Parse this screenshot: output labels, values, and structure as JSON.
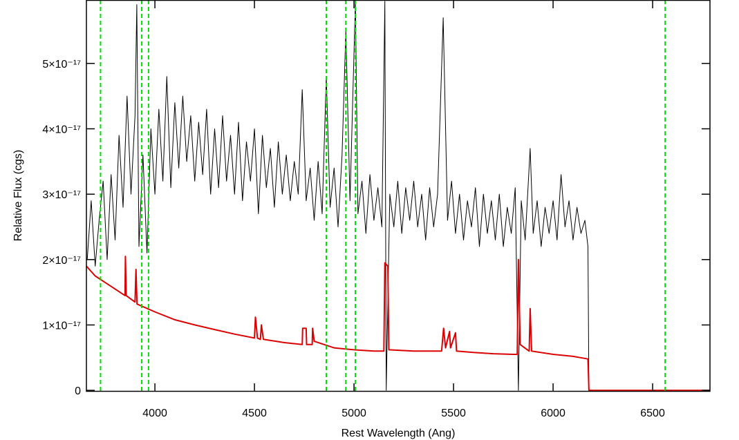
{
  "chart_data": {
    "type": "line",
    "xlabel": "Rest Wavelength (Ang)",
    "ylabel": "Relative Flux (cgs)",
    "xlim": [
      3656,
      6788
    ],
    "ylim": [
      -2e-19,
      5.97e-17
    ],
    "xticks": [
      4000,
      4500,
      5000,
      5500,
      6000,
      6500
    ],
    "yticks": [
      0,
      {
        "value": 1e-17,
        "label": "1×10⁻¹⁷"
      },
      {
        "value": 2e-17,
        "label": "2×10⁻¹⁷"
      },
      {
        "value": 3e-17,
        "label": "3×10⁻¹⁷"
      },
      {
        "value": 4e-17,
        "label": "4×10⁻¹⁷"
      },
      {
        "value": 5e-17,
        "label": "5×10⁻¹⁷"
      }
    ],
    "vlines": {
      "color": "#00dd00",
      "x": [
        3727,
        3934,
        3968,
        4861,
        4959,
        5007,
        6563
      ]
    },
    "series": [
      {
        "color": "#000000",
        "x": [
          3660,
          3680,
          3700,
          3720,
          3740,
          3760,
          3780,
          3800,
          3820,
          3840,
          3860,
          3880,
          3900,
          3909,
          3920,
          3940,
          3960,
          3980,
          4000,
          4020,
          4040,
          4060,
          4080,
          4100,
          4120,
          4140,
          4160,
          4180,
          4200,
          4220,
          4240,
          4260,
          4280,
          4300,
          4320,
          4340,
          4360,
          4380,
          4400,
          4420,
          4440,
          4460,
          4480,
          4500,
          4520,
          4540,
          4560,
          4580,
          4600,
          4620,
          4640,
          4660,
          4680,
          4700,
          4720,
          4740,
          4760,
          4780,
          4800,
          4820,
          4840,
          4861,
          4880,
          4900,
          4920,
          4940,
          4959,
          4980,
          5007,
          5020,
          5040,
          5060,
          5080,
          5100,
          5120,
          5140,
          5155,
          5162,
          5180,
          5200,
          5220,
          5240,
          5260,
          5280,
          5300,
          5320,
          5340,
          5360,
          5380,
          5400,
          5420,
          5448,
          5470,
          5490,
          5510,
          5530,
          5550,
          5570,
          5590,
          5610,
          5630,
          5650,
          5670,
          5690,
          5710,
          5730,
          5750,
          5770,
          5790,
          5810,
          5826,
          5840,
          5860,
          5885,
          5900,
          5920,
          5940,
          5960,
          5980,
          6000,
          6020,
          6040,
          6060,
          6080,
          6100,
          6120,
          6140,
          6160,
          6175,
          6180,
          6788
        ],
        "values": [
          2e-17,
          2.9e-17,
          1.9e-17,
          2.6e-17,
          3.2e-17,
          2e-17,
          3.3e-17,
          2.3e-17,
          3.9e-17,
          2.8e-17,
          4.5e-17,
          3e-17,
          4.2e-17,
          5.9e-17,
          2.2e-17,
          3.6e-17,
          2.1e-17,
          4e-17,
          3e-17,
          4.3e-17,
          3.2e-17,
          4.8e-17,
          3.1e-17,
          4.4e-17,
          3.4e-17,
          4.5e-17,
          3.5e-17,
          4.2e-17,
          3.2e-17,
          4.1e-17,
          3.3e-17,
          4.3e-17,
          3e-17,
          4e-17,
          3.1e-17,
          4.2e-17,
          3.2e-17,
          3.9e-17,
          3e-17,
          4.1e-17,
          2.9e-17,
          3.8e-17,
          3.2e-17,
          4e-17,
          2.7e-17,
          3.9e-17,
          3.1e-17,
          3.7e-17,
          2.8e-17,
          3.8e-17,
          3e-17,
          3.6e-17,
          2.9e-17,
          3.5e-17,
          3e-17,
          4.6e-17,
          2.9e-17,
          3.4e-17,
          2.6e-17,
          3.5e-17,
          2.7e-17,
          4.8e-17,
          2.8e-17,
          3.4e-17,
          2.5e-17,
          3.6e-17,
          5.5e-17,
          2.9e-17,
          5.95e-17,
          2.7e-17,
          3.2e-17,
          2.4e-17,
          3.3e-17,
          2.6e-17,
          3.1e-17,
          2.5e-17,
          5.95e-17,
          0,
          3e-17,
          2.5e-17,
          3.2e-17,
          2.4e-17,
          3.1e-17,
          2.6e-17,
          3.2e-17,
          2.5e-17,
          3e-17,
          2.3e-17,
          3.1e-17,
          2.5e-17,
          3e-17,
          5.7e-17,
          2.6e-17,
          3.2e-17,
          2.4e-17,
          3e-17,
          2.3e-17,
          2.9e-17,
          2.5e-17,
          3.1e-17,
          2.2e-17,
          3e-17,
          2.4e-17,
          2.9e-17,
          2.3e-17,
          3e-17,
          2.2e-17,
          2.8e-17,
          2.4e-17,
          3.1e-17,
          0,
          2.9e-17,
          2.3e-17,
          3.7e-17,
          2.4e-17,
          2.9e-17,
          2.2e-17,
          2.8e-17,
          2.4e-17,
          2.9e-17,
          2.3e-17,
          3.3e-17,
          2.5e-17,
          2.9e-17,
          2.3e-17,
          2.8e-17,
          2.4e-17,
          2.6e-17,
          2.2e-17,
          0,
          0
        ]
      },
      {
        "color": "#dd0000",
        "x": [
          3656,
          3700,
          3750,
          3800,
          3850,
          3852,
          3856,
          3900,
          3905,
          3910,
          4000,
          4100,
          4200,
          4300,
          4400,
          4500,
          4505,
          4515,
          4530,
          4535,
          4545,
          4650,
          4740,
          4742,
          4760,
          4762,
          4790,
          4792,
          4800,
          4900,
          5000,
          5100,
          5150,
          5155,
          5170,
          5175,
          5300,
          5440,
          5450,
          5460,
          5480,
          5485,
          5510,
          5515,
          5600,
          5700,
          5800,
          5820,
          5826,
          5835,
          5880,
          5885,
          5892,
          6000,
          6100,
          6175,
          6180,
          6788
        ],
        "values": [
          1.9e-17,
          1.75e-17,
          1.65e-17,
          1.55e-17,
          1.45e-17,
          2.05e-17,
          1.45e-17,
          1.35e-17,
          1.85e-17,
          1.32e-17,
          1.2e-17,
          1.08e-17,
          1e-17,
          9.3e-18,
          8.6e-18,
          8e-18,
          1.12e-17,
          8e-18,
          7.8e-18,
          1e-17,
          7.8e-18,
          7.3e-18,
          7e-18,
          9.5e-18,
          9.5e-18,
          7e-18,
          7e-18,
          9.5e-18,
          7.5e-18,
          6.5e-18,
          6.2e-18,
          6e-18,
          6e-18,
          1.95e-17,
          1.9e-17,
          6.2e-18,
          6e-18,
          6e-18,
          9.5e-18,
          6.5e-18,
          9e-18,
          6.5e-18,
          8.8e-18,
          6e-18,
          5.8e-18,
          5.6e-18,
          5.5e-18,
          5.5e-18,
          2e-17,
          7e-18,
          6e-18,
          1.25e-17,
          6e-18,
          5.5e-18,
          5.2e-18,
          4.8e-18,
          0,
          0
        ]
      }
    ]
  }
}
